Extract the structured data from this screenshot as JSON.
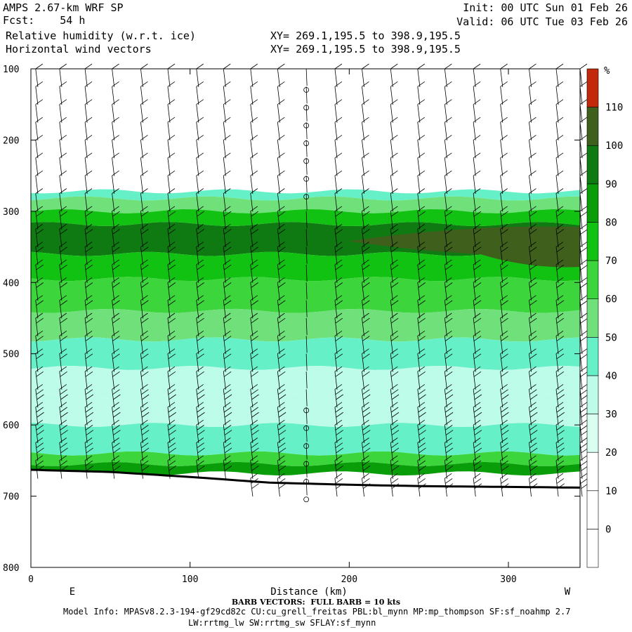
{
  "header": {
    "line1_left": "AMPS 2.67-km WRF SP",
    "line2_left": "Fcst:    54 h",
    "line1_right": "Init: 00 UTC Sun 01 Feb 26",
    "line2_right": "Valid: 06 UTC Tue 03 Feb 26",
    "field1": "Relative humidity (w.r.t. ice)",
    "field2": "Horizontal wind vectors",
    "xy1": "XY= 269.1,195.5 to 398.9,195.5",
    "xy2": "XY= 269.1,195.5 to 398.9,195.5"
  },
  "footer": {
    "barb_note": "BARB VECTORS:  FULL BARB = 10 kts",
    "model_info_1": "Model Info: MPASv8.2.3-194-gf29cd82c CU:cu_grell_freitas PBL:bl_mynn MP:mp_thompson SF:sf_noahmp 2.7",
    "model_info_2": "LW:rrtmg_lw SW:rrtmg_sw SFLAY:sf_mynn"
  },
  "chart_data": {
    "type": "heatmap",
    "title": "Relative humidity (w.r.t. ice)",
    "xlabel": "Distance (km)",
    "ylabel": "",
    "x_left_label": "E",
    "x_right_label": "W",
    "xlim": [
      0,
      345
    ],
    "ylim": [
      800,
      100
    ],
    "x_ticks": [
      0,
      100,
      200,
      300
    ],
    "y_ticks": [
      100,
      200,
      300,
      400,
      500,
      600,
      700,
      800
    ],
    "colorbar": {
      "unit": "%",
      "levels": [
        0,
        10,
        20,
        30,
        40,
        50,
        60,
        70,
        80,
        90,
        100,
        110
      ],
      "colors": [
        "#ffffff",
        "#ffffff",
        "#ffffff",
        "#d8fff0",
        "#bdfce9",
        "#66f0c8",
        "#6fe07a",
        "#3cd63c",
        "#12c212",
        "#0a9d0a",
        "#0f7a12",
        "#3f5f1c",
        "#c2280a"
      ]
    },
    "rh_layers": [
      {
        "p_top": 100,
        "p_bot": 272,
        "rh": 10
      },
      {
        "p_top": 272,
        "p_bot": 282,
        "rh": 45
      },
      {
        "p_top": 282,
        "p_bot": 300,
        "rh": 55
      },
      {
        "p_top": 300,
        "p_bot": 318,
        "rh": 78
      },
      {
        "p_top": 318,
        "p_bot": 360,
        "rh": 90
      },
      {
        "p_top": 360,
        "p_bot": 395,
        "rh": 75
      },
      {
        "p_top": 395,
        "p_bot": 440,
        "rh": 65
      },
      {
        "p_top": 440,
        "p_bot": 480,
        "rh": 55
      },
      {
        "p_top": 480,
        "p_bot": 520,
        "rh": 45
      },
      {
        "p_top": 520,
        "p_bot": 560,
        "rh": 35
      },
      {
        "p_top": 560,
        "p_bot": 600,
        "rh": 38
      },
      {
        "p_top": 600,
        "p_bot": 640,
        "rh": 45
      },
      {
        "p_top": 640,
        "p_bot": 655,
        "rh": 65
      },
      {
        "p_top": 655,
        "p_bot": 668,
        "rh": 85
      }
    ],
    "rh_features": [
      {
        "x0": 200,
        "x1": 345,
        "p_top": 322,
        "p_bot": 362,
        "rh": 100
      },
      {
        "x0": 275,
        "x1": 345,
        "p_top": 332,
        "p_bot": 378,
        "rh": 105
      },
      {
        "x0": 160,
        "x1": 250,
        "p_top": 555,
        "p_bot": 585,
        "rh": 30
      }
    ],
    "surface_pressure": [
      {
        "x": 0,
        "p": 663
      },
      {
        "x": 50,
        "p": 666
      },
      {
        "x": 100,
        "p": 673
      },
      {
        "x": 150,
        "p": 681
      },
      {
        "x": 200,
        "p": 684
      },
      {
        "x": 250,
        "p": 686
      },
      {
        "x": 300,
        "p": 687
      },
      {
        "x": 345,
        "p": 688
      }
    ],
    "barb_columns_x": [
      3,
      18,
      34,
      51,
      69,
      86,
      104,
      121,
      138,
      155,
      173,
      191,
      208,
      226,
      243,
      260,
      278,
      295,
      313,
      330,
      345
    ],
    "barb_levels_p": [
      100,
      125,
      150,
      175,
      200,
      225,
      250,
      275,
      300,
      325,
      350,
      375,
      400,
      425,
      450,
      475,
      500,
      525,
      550,
      575,
      600,
      625,
      650,
      675
    ],
    "calm_column_x": 173
  }
}
